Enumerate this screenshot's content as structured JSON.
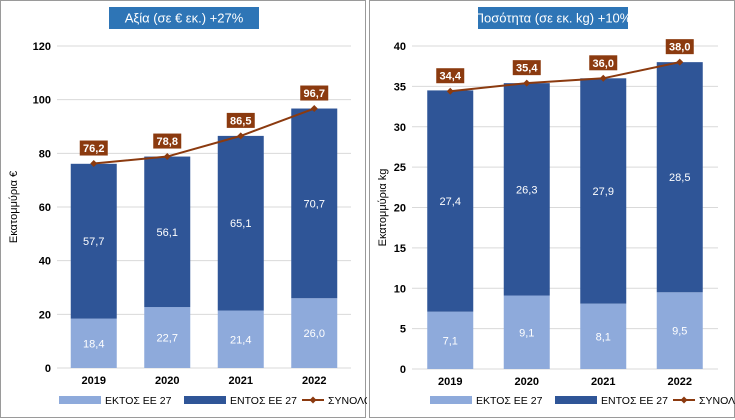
{
  "colors": {
    "outside_eu": "#8eaadb",
    "inside_eu": "#2f5597",
    "total": "#8b3a0f",
    "title_bg": "#2e75b6",
    "grid": "#d9d9d9"
  },
  "legend": {
    "outside": "ΕΚΤΟΣ ΕΕ 27",
    "inside": "ΕΝΤΟΣ ΕΕ 27",
    "total": "ΣΥΝΟΛΟ"
  },
  "chart_data": [
    {
      "type": "bar",
      "stacked": true,
      "title": "Αξία (σε € εκ.) +27%",
      "ylabel": "Εκατομμύρια €",
      "xlabel": "",
      "categories": [
        "2019",
        "2020",
        "2021",
        "2022"
      ],
      "ylim": [
        0,
        120
      ],
      "yticks": [
        "0",
        "20",
        "40",
        "60",
        "80",
        "100",
        "120"
      ],
      "series": [
        {
          "name": "ΕΚΤΟΣ ΕΕ 27",
          "values": [
            18.4,
            22.7,
            21.4,
            26.0
          ],
          "labels": [
            "18,4",
            "22,7",
            "21,4",
            "26,0"
          ]
        },
        {
          "name": "ΕΝΤΟΣ ΕΕ 27",
          "values": [
            57.7,
            56.1,
            65.1,
            70.7
          ],
          "labels": [
            "57,7",
            "56,1",
            "65,1",
            "70,7"
          ]
        }
      ],
      "total": {
        "name": "ΣΥΝΟΛΟ",
        "values": [
          76.2,
          78.8,
          86.5,
          96.7
        ],
        "labels": [
          "76,2",
          "78,8",
          "86,5",
          "96,7"
        ]
      }
    },
    {
      "type": "bar",
      "stacked": true,
      "title": "Ποσότητα (σε εκ. kg) +10%",
      "ylabel": "Εκατομμύρια kg",
      "xlabel": "",
      "categories": [
        "2019",
        "2020",
        "2021",
        "2022"
      ],
      "ylim": [
        0,
        40
      ],
      "yticks": [
        "0",
        "5",
        "10",
        "15",
        "20",
        "25",
        "30",
        "35",
        "40"
      ],
      "series": [
        {
          "name": "ΕΚΤΟΣ ΕΕ 27",
          "values": [
            7.1,
            9.1,
            8.1,
            9.5
          ],
          "labels": [
            "7,1",
            "9,1",
            "8,1",
            "9,5"
          ]
        },
        {
          "name": "ΕΝΤΟΣ ΕΕ 27",
          "values": [
            27.4,
            26.3,
            27.9,
            28.5
          ],
          "labels": [
            "27,4",
            "26,3",
            "27,9",
            "28,5"
          ]
        }
      ],
      "total": {
        "name": "ΣΥΝΟΛΟ",
        "values": [
          34.4,
          35.4,
          36.0,
          38.0
        ],
        "labels": [
          "34,4",
          "35,4",
          "36,0",
          "38,0"
        ]
      }
    }
  ]
}
